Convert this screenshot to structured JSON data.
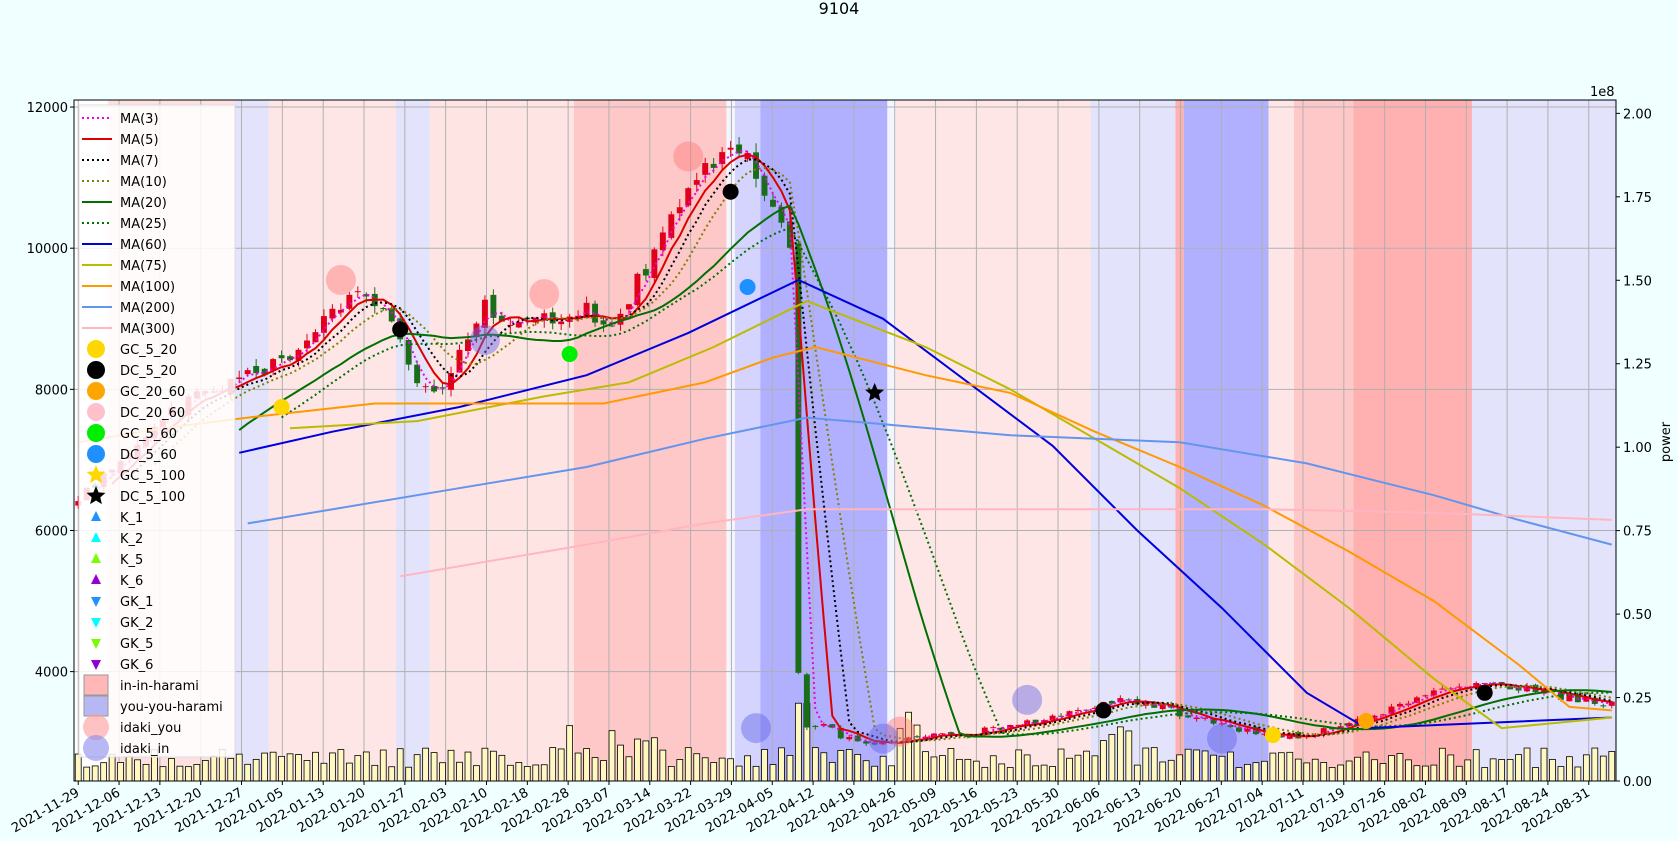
{
  "chart_data": {
    "type": "candlestick",
    "title": "9104",
    "y_left": {
      "min": 2450,
      "max": 12100,
      "ticks": [
        4000,
        6000,
        8000,
        10000,
        12000
      ]
    },
    "y_right": {
      "label": "power",
      "exponent_label": "1e8",
      "min": 0,
      "max": 2.04,
      "ticks": [
        "0.00",
        "0.25",
        "0.50",
        "0.75",
        "1.00",
        "1.25",
        "1.50",
        "1.75",
        "2.00"
      ]
    },
    "x_ticks": [
      "2021-11-29",
      "2021-12-06",
      "2021-12-13",
      "2021-12-20",
      "2021-12-27",
      "2022-01-05",
      "2022-01-13",
      "2022-01-20",
      "2022-01-27",
      "2022-02-03",
      "2022-02-10",
      "2022-02-18",
      "2022-02-28",
      "2022-03-07",
      "2022-03-14",
      "2022-03-22",
      "2022-03-29",
      "2022-04-05",
      "2022-04-12",
      "2022-04-19",
      "2022-04-26",
      "2022-05-09",
      "2022-05-16",
      "2022-05-23",
      "2022-05-30",
      "2022-06-06",
      "2022-06-13",
      "2022-06-20",
      "2022-06-27",
      "2022-07-04",
      "2022-07-11",
      "2022-07-19",
      "2022-07-26",
      "2022-08-02",
      "2022-08-09",
      "2022-08-17",
      "2022-08-24",
      "2022-08-31"
    ],
    "close_anchors": [
      [
        0,
        6500
      ],
      [
        5,
        7000
      ],
      [
        10,
        7600
      ],
      [
        15,
        8000
      ],
      [
        20,
        8200
      ],
      [
        25,
        8500
      ],
      [
        29,
        9000
      ],
      [
        33,
        9500
      ],
      [
        37,
        9000
      ],
      [
        40,
        8200
      ],
      [
        43,
        8000
      ],
      [
        45,
        8500
      ],
      [
        48,
        9200
      ],
      [
        52,
        8900
      ],
      [
        56,
        9000
      ],
      [
        60,
        9100
      ],
      [
        63,
        8900
      ],
      [
        66,
        9500
      ],
      [
        68,
        10000
      ],
      [
        70,
        10500
      ],
      [
        73,
        11000
      ],
      [
        76,
        11300
      ],
      [
        79,
        11200
      ],
      [
        82,
        10600
      ],
      [
        84,
        10000
      ],
      [
        85,
        4000
      ],
      [
        86,
        3200
      ],
      [
        88,
        3300
      ],
      [
        90,
        3100
      ],
      [
        93,
        2950
      ],
      [
        96,
        3000
      ],
      [
        99,
        3050
      ],
      [
        102,
        3100
      ],
      [
        105,
        3100
      ],
      [
        108,
        3200
      ],
      [
        111,
        3250
      ],
      [
        114,
        3300
      ],
      [
        117,
        3400
      ],
      [
        120,
        3500
      ],
      [
        123,
        3600
      ],
      [
        126,
        3550
      ],
      [
        128,
        3500
      ],
      [
        130,
        3400
      ],
      [
        133,
        3300
      ],
      [
        136,
        3200
      ],
      [
        139,
        3150
      ],
      [
        142,
        3100
      ],
      [
        145,
        3100
      ],
      [
        148,
        3200
      ],
      [
        151,
        3300
      ],
      [
        154,
        3400
      ],
      [
        157,
        3600
      ],
      [
        160,
        3750
      ],
      [
        163,
        3800
      ],
      [
        166,
        3800
      ],
      [
        169,
        3750
      ],
      [
        172,
        3750
      ],
      [
        175,
        3650
      ],
      [
        178,
        3600
      ],
      [
        181,
        3550
      ]
    ],
    "n_days": 182,
    "moving_averages": [
      {
        "name": "MA(3)",
        "period": 3,
        "color": "#ee00ee",
        "style": "dotted"
      },
      {
        "name": "MA(5)",
        "period": 5,
        "color": "#dd0000",
        "style": "solid"
      },
      {
        "name": "MA(7)",
        "period": 7,
        "color": "#000000",
        "style": "dotted"
      },
      {
        "name": "MA(10)",
        "period": 10,
        "color": "#808000",
        "style": "dotted"
      },
      {
        "name": "MA(20)",
        "period": 20,
        "color": "#007000",
        "style": "solid"
      },
      {
        "name": "MA(25)",
        "period": 25,
        "color": "#007000",
        "style": "dotted"
      },
      {
        "name": "MA(60)",
        "period": 60,
        "color": "#0000dd",
        "style": "solid"
      },
      {
        "name": "MA(75)",
        "period": 75,
        "color": "#bbbb00",
        "style": "solid"
      },
      {
        "name": "MA(100)",
        "period": 100,
        "color": "#ff9900",
        "style": "solid"
      },
      {
        "name": "MA(200)",
        "period": 200,
        "color": "#6495ed",
        "style": "solid"
      },
      {
        "name": "MA(300)",
        "period": 300,
        "color": "#ffb6c1",
        "style": "solid"
      }
    ],
    "ma_long_override": {
      "MA(100)": [
        [
          0,
          7250
        ],
        [
          10,
          7450
        ],
        [
          20,
          7600
        ],
        [
          35,
          7800
        ],
        [
          50,
          7800
        ],
        [
          62,
          7800
        ],
        [
          74,
          8100
        ],
        [
          82,
          8450
        ],
        [
          87,
          8600
        ],
        [
          100,
          8200
        ],
        [
          110,
          7950
        ],
        [
          120,
          7400
        ],
        [
          130,
          6900
        ],
        [
          140,
          6350
        ],
        [
          150,
          5700
        ],
        [
          160,
          5000
        ],
        [
          170,
          4100
        ],
        [
          176,
          3500
        ],
        [
          181,
          3450
        ]
      ],
      "MA(200)": [
        [
          20,
          6100
        ],
        [
          40,
          6500
        ],
        [
          60,
          6900
        ],
        [
          74,
          7300
        ],
        [
          86,
          7600
        ],
        [
          110,
          7350
        ],
        [
          130,
          7250
        ],
        [
          145,
          6950
        ],
        [
          160,
          6500
        ],
        [
          170,
          6150
        ],
        [
          181,
          5800
        ]
      ],
      "MA(300)": [
        [
          38,
          5350
        ],
        [
          60,
          5800
        ],
        [
          74,
          6100
        ],
        [
          86,
          6300
        ],
        [
          110,
          6300
        ],
        [
          140,
          6300
        ],
        [
          160,
          6250
        ],
        [
          181,
          6150
        ]
      ],
      "MA(75)": [
        [
          25,
          7450
        ],
        [
          40,
          7550
        ],
        [
          55,
          7900
        ],
        [
          65,
          8100
        ],
        [
          75,
          8600
        ],
        [
          86,
          9250
        ],
        [
          100,
          8600
        ],
        [
          110,
          8000
        ],
        [
          120,
          7300
        ],
        [
          130,
          6600
        ],
        [
          140,
          5800
        ],
        [
          150,
          4900
        ],
        [
          160,
          3900
        ],
        [
          168,
          3200
        ],
        [
          181,
          3350
        ]
      ],
      "MA(60)": [
        [
          19,
          7100
        ],
        [
          30,
          7400
        ],
        [
          45,
          7750
        ],
        [
          60,
          8200
        ],
        [
          72,
          8800
        ],
        [
          85,
          9550
        ],
        [
          95,
          9000
        ],
        [
          105,
          8100
        ],
        [
          115,
          7200
        ],
        [
          125,
          6000
        ],
        [
          135,
          4900
        ],
        [
          145,
          3700
        ],
        [
          152,
          3200
        ],
        [
          181,
          3350
        ]
      ]
    },
    "legend": {
      "placement": "upper-left",
      "lines": [
        "MA(3)",
        "MA(5)",
        "MA(7)",
        "MA(10)",
        "MA(20)",
        "MA(25)",
        "MA(60)",
        "MA(75)",
        "MA(100)",
        "MA(200)",
        "MA(300)"
      ],
      "markers": [
        {
          "name": "GC_5_20",
          "color": "#ffd700",
          "shape": "circle"
        },
        {
          "name": "DC_5_20",
          "color": "#000000",
          "shape": "circle"
        },
        {
          "name": "GC_20_60",
          "color": "#ffa500",
          "shape": "circle"
        },
        {
          "name": "DC_20_60",
          "color": "#ffc0cb",
          "shape": "circle"
        },
        {
          "name": "GC_5_60",
          "color": "#00ee00",
          "shape": "circle"
        },
        {
          "name": "DC_5_60",
          "color": "#1e90ff",
          "shape": "circle"
        },
        {
          "name": "GC_5_100",
          "color": "#ffd700",
          "shape": "star"
        },
        {
          "name": "DC_5_100",
          "color": "#000000",
          "shape": "star"
        },
        {
          "name": "K_1",
          "color": "#1e90ff",
          "shape": "tri-up"
        },
        {
          "name": "K_2",
          "color": "#00ffff",
          "shape": "tri-up"
        },
        {
          "name": "K_5",
          "color": "#7cfc00",
          "shape": "tri-up"
        },
        {
          "name": "K_6",
          "color": "#9400d3",
          "shape": "tri-up"
        },
        {
          "name": "GK_1",
          "color": "#1e90ff",
          "shape": "tri-down"
        },
        {
          "name": "GK_2",
          "color": "#00ffff",
          "shape": "tri-down"
        },
        {
          "name": "GK_5",
          "color": "#7cfc00",
          "shape": "tri-down"
        },
        {
          "name": "GK_6",
          "color": "#9400d3",
          "shape": "tri-down"
        },
        {
          "name": "in-in-harami",
          "color": "#ff9999",
          "shape": "square"
        },
        {
          "name": "you-you-harami",
          "color": "#9999ee",
          "shape": "square"
        },
        {
          "name": "idaki_you",
          "color": "#ff9999",
          "shape": "big-circle"
        },
        {
          "name": "idaki_in",
          "color": "#8888ee",
          "shape": "big-circle"
        }
      ]
    },
    "bands": [
      {
        "from": 0,
        "to": 4,
        "color": "#ffffff"
      },
      {
        "from": 4,
        "to": 19,
        "color": "#ffe0e0"
      },
      {
        "from": 19,
        "to": 23,
        "color": "#e3e3fc"
      },
      {
        "from": 23,
        "to": 38,
        "color": "#ffe6e6"
      },
      {
        "from": 38,
        "to": 42,
        "color": "#e3e3fc"
      },
      {
        "from": 42,
        "to": 59,
        "color": "#ffe4e4"
      },
      {
        "from": 59,
        "to": 77,
        "color": "#ffc8c8"
      },
      {
        "from": 77,
        "to": 78,
        "color": "#f5f5ff"
      },
      {
        "from": 78,
        "to": 81,
        "color": "#d4d4ff"
      },
      {
        "from": 81,
        "to": 96,
        "color": "#b0b0ff"
      },
      {
        "from": 96,
        "to": 97,
        "color": "#f5f5ff"
      },
      {
        "from": 97,
        "to": 120,
        "color": "#ffe6e6"
      },
      {
        "from": 120,
        "to": 130,
        "color": "#e3e3fc"
      },
      {
        "from": 130,
        "to": 131,
        "color": "#ffb0b0"
      },
      {
        "from": 131,
        "to": 141,
        "color": "#b0b0ff"
      },
      {
        "from": 141,
        "to": 144,
        "color": "#ffe6e6"
      },
      {
        "from": 144,
        "to": 151,
        "color": "#ffc8c8"
      },
      {
        "from": 151,
        "to": 165,
        "color": "#ffb0b0"
      },
      {
        "from": 165,
        "to": 182,
        "color": "#e3e3fc"
      }
    ],
    "events": [
      {
        "type": "DC_5_20",
        "day": 38,
        "value": 8850
      },
      {
        "type": "DC_5_20",
        "day": 77,
        "value": 10800
      },
      {
        "type": "DC_5_20",
        "day": 121,
        "value": 3450
      },
      {
        "type": "DC_5_20",
        "day": 166,
        "value": 3700
      },
      {
        "type": "GC_5_20",
        "day": 24,
        "value": 7750
      },
      {
        "type": "GC_5_20",
        "day": 141,
        "value": 3100
      },
      {
        "type": "GC_5_60",
        "day": 58,
        "value": 8500
      },
      {
        "type": "DC_5_60",
        "day": 79,
        "value": 9450
      },
      {
        "type": "GC_20_60",
        "day": 152,
        "value": 3300
      },
      {
        "type": "DC_5_100",
        "day": 94,
        "value": 7950
      },
      {
        "type": "idaki_you",
        "day": 31,
        "value": 9550
      },
      {
        "type": "idaki_you",
        "day": 55,
        "value": 9350
      },
      {
        "type": "idaki_you",
        "day": 72,
        "value": 11300
      },
      {
        "type": "idaki_you",
        "day": 97,
        "value": 3150
      },
      {
        "type": "idaki_in",
        "day": 48,
        "value": 8700
      },
      {
        "type": "idaki_in",
        "day": 95,
        "value": 3050
      },
      {
        "type": "idaki_in",
        "day": 80,
        "value": 3200
      },
      {
        "type": "idaki_in",
        "day": 112,
        "value": 3600
      },
      {
        "type": "idaki_in",
        "day": 135,
        "value": 3050
      }
    ]
  }
}
